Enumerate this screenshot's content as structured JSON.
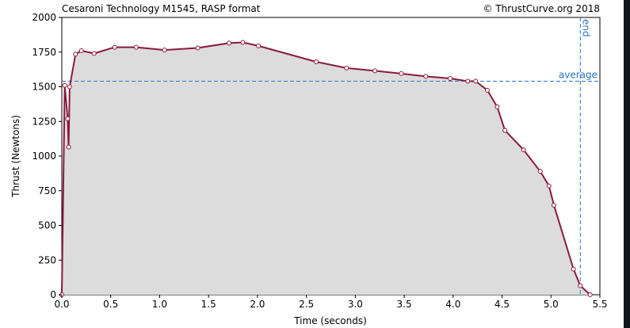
{
  "chart_data": {
    "type": "line",
    "title": "Cesaroni Technology M1545, RASP format",
    "copyright": "© ThrustCurve.org 2018",
    "xlabel": "Time (seconds)",
    "ylabel": "Thrust (Newtons)",
    "xlim": [
      0,
      5.5
    ],
    "ylim": [
      0,
      2000
    ],
    "x_ticks": [
      "0.0",
      "0.5",
      "1.0",
      "1.5",
      "2.0",
      "2.5",
      "3.0",
      "3.5",
      "4.0",
      "4.5",
      "5.0",
      "5.5"
    ],
    "y_ticks": [
      "0",
      "250",
      "500",
      "750",
      "1000",
      "1250",
      "1500",
      "1750",
      "2000"
    ],
    "average_label": "average",
    "average_value": 1540,
    "end_label": "end",
    "end_time": 5.3,
    "points": [
      [
        0.0,
        0
      ],
      [
        0.03,
        1510
      ],
      [
        0.06,
        1270
      ],
      [
        0.07,
        1065
      ],
      [
        0.08,
        1500
      ],
      [
        0.14,
        1735
      ],
      [
        0.2,
        1760
      ],
      [
        0.33,
        1740
      ],
      [
        0.54,
        1785
      ],
      [
        0.76,
        1785
      ],
      [
        1.05,
        1765
      ],
      [
        1.39,
        1780
      ],
      [
        1.71,
        1815
      ],
      [
        1.85,
        1820
      ],
      [
        2.01,
        1795
      ],
      [
        2.6,
        1680
      ],
      [
        2.91,
        1635
      ],
      [
        3.2,
        1615
      ],
      [
        3.47,
        1595
      ],
      [
        3.72,
        1575
      ],
      [
        3.97,
        1560
      ],
      [
        4.15,
        1540
      ],
      [
        4.23,
        1540
      ],
      [
        4.35,
        1475
      ],
      [
        4.45,
        1355
      ],
      [
        4.53,
        1185
      ],
      [
        4.72,
        1045
      ],
      [
        4.89,
        890
      ],
      [
        4.98,
        785
      ],
      [
        5.03,
        645
      ],
      [
        5.23,
        185
      ],
      [
        5.3,
        65
      ],
      [
        5.4,
        0
      ]
    ],
    "colors": {
      "line": "#8b1a3e",
      "fill": "#dcdcdc",
      "reference": "#2a75c4"
    },
    "grid": false
  }
}
